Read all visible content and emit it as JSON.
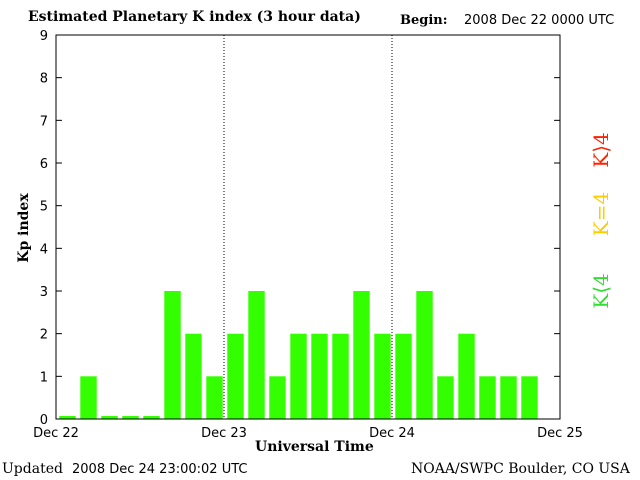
{
  "header": {
    "title": "Estimated Planetary K index (3 hour data)",
    "begin_label": "Begin:",
    "begin_value": "2008 Dec 22 0000 UTC"
  },
  "footer": {
    "updated_label": "Updated",
    "updated_value": "2008 Dec 24 23:00:02 UTC",
    "credit": "NOAA/SWPC Boulder, CO USA"
  },
  "legend": [
    {
      "label": "K>4",
      "display": "K⟩4",
      "color": "#ff2200"
    },
    {
      "label": "K=4",
      "display": "K=4",
      "color": "#ffcc00"
    },
    {
      "label": "K<4",
      "display": "K⟨4",
      "color": "#33dd33"
    }
  ],
  "chart_data": {
    "type": "bar",
    "title": "Estimated Planetary K index (3 hour data)",
    "xlabel": "Universal Time",
    "ylabel": "Kp index",
    "ylim": [
      0,
      9
    ],
    "yticks": [
      0,
      1,
      2,
      3,
      4,
      5,
      6,
      7,
      8,
      9
    ],
    "x_ticks": [
      "Dec 22",
      "Dec 23",
      "Dec 24",
      "Dec 25"
    ],
    "interval_hours": 3,
    "values": [
      0,
      1,
      0,
      0,
      0,
      3,
      2,
      1,
      2,
      3,
      1,
      2,
      2,
      2,
      3,
      2,
      2,
      3,
      1,
      2,
      1,
      1,
      1
    ],
    "bar_color": "#33ff00",
    "day_separators": "dotted"
  }
}
